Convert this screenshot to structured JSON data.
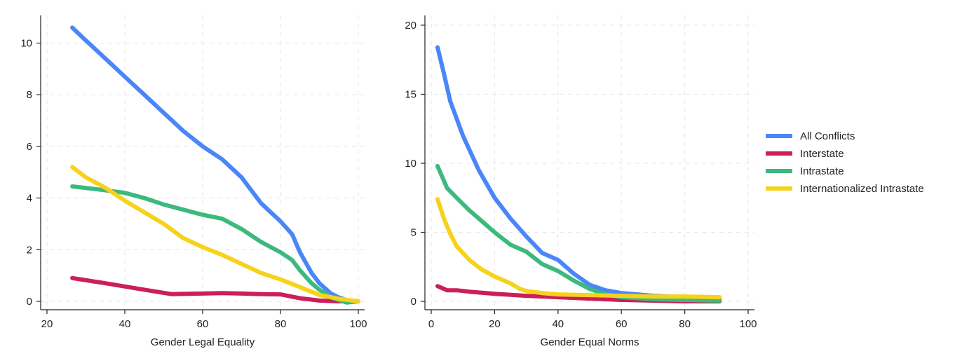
{
  "chart_data": [
    {
      "type": "line",
      "xlabel": "Gender Legal Equality",
      "ylabel": "",
      "xlim": [
        20,
        100
      ],
      "ylim": [
        0,
        10.8
      ],
      "xticks": [
        20,
        40,
        60,
        80,
        100
      ],
      "yticks": [
        0,
        2,
        4,
        6,
        8,
        10
      ],
      "grid": true,
      "series": [
        {
          "name": "All Conflicts",
          "color": "#4a86f7",
          "x": [
            26.5,
            30,
            35,
            40,
            45,
            50,
            55,
            60,
            65,
            70,
            75,
            80,
            83,
            85,
            88,
            90,
            93,
            95,
            97,
            100
          ],
          "y": [
            10.6,
            10.1,
            9.4,
            8.7,
            8.0,
            7.3,
            6.6,
            6.0,
            5.5,
            4.8,
            3.8,
            3.1,
            2.6,
            1.9,
            1.1,
            0.7,
            0.3,
            0.15,
            0.05,
            0.0
          ]
        },
        {
          "name": "Interstate",
          "color": "#cc1e5a",
          "x": [
            26.5,
            35,
            45,
            52,
            60,
            65,
            70,
            75,
            80,
            85,
            90,
            95,
            100
          ],
          "y": [
            0.9,
            0.7,
            0.45,
            0.28,
            0.3,
            0.32,
            0.3,
            0.28,
            0.27,
            0.12,
            0.03,
            0.0,
            0.0
          ]
        },
        {
          "name": "Intrastate",
          "color": "#3cba7e",
          "x": [
            26.5,
            35,
            40,
            45,
            50,
            55,
            60,
            65,
            70,
            75,
            80,
            83,
            85,
            88,
            90,
            93,
            95,
            97,
            100
          ],
          "y": [
            4.45,
            4.3,
            4.2,
            4.0,
            3.75,
            3.55,
            3.35,
            3.2,
            2.8,
            2.3,
            1.9,
            1.6,
            1.2,
            0.7,
            0.45,
            0.15,
            0.05,
            -0.05,
            0.0
          ]
        },
        {
          "name": "Internationalized Intrastate",
          "color": "#f7d21a",
          "x": [
            26.5,
            30,
            35,
            40,
            45,
            50,
            55,
            60,
            65,
            70,
            75,
            80,
            85,
            90,
            95,
            100
          ],
          "y": [
            5.2,
            4.8,
            4.4,
            3.9,
            3.45,
            3.0,
            2.45,
            2.1,
            1.8,
            1.45,
            1.1,
            0.85,
            0.55,
            0.25,
            0.1,
            0.0
          ]
        }
      ]
    },
    {
      "type": "line",
      "xlabel": "Gender Equal Norms",
      "ylabel": "",
      "xlim": [
        0,
        100
      ],
      "ylim": [
        0,
        20.2
      ],
      "xticks": [
        0,
        20,
        40,
        60,
        80,
        100
      ],
      "yticks": [
        0,
        5,
        10,
        15,
        20
      ],
      "grid": true,
      "series": [
        {
          "name": "All Conflicts",
          "color": "#4a86f7",
          "x": [
            2,
            4,
            6,
            10,
            15,
            20,
            25,
            30,
            35,
            40,
            45,
            50,
            55,
            60,
            70,
            80,
            91
          ],
          "y": [
            18.4,
            16.5,
            14.5,
            12.0,
            9.5,
            7.5,
            6.0,
            4.7,
            3.5,
            3.0,
            2.0,
            1.2,
            0.8,
            0.6,
            0.4,
            0.3,
            0.2
          ]
        },
        {
          "name": "Interstate",
          "color": "#cc1e5a",
          "x": [
            2,
            5,
            8,
            12,
            20,
            30,
            40,
            50,
            60,
            70,
            80,
            91
          ],
          "y": [
            1.1,
            0.8,
            0.8,
            0.7,
            0.55,
            0.4,
            0.3,
            0.2,
            0.1,
            0.05,
            0.0,
            0.0
          ]
        },
        {
          "name": "Intrastate",
          "color": "#3cba7e",
          "x": [
            2,
            5,
            8,
            12,
            16,
            20,
            25,
            30,
            35,
            40,
            45,
            50,
            55,
            60,
            70,
            80,
            91
          ],
          "y": [
            9.8,
            8.2,
            7.5,
            6.6,
            5.8,
            5.0,
            4.1,
            3.6,
            2.7,
            2.2,
            1.5,
            0.9,
            0.5,
            0.3,
            0.15,
            0.1,
            0.05
          ]
        },
        {
          "name": "Internationalized Intrastate",
          "color": "#f7d21a",
          "x": [
            2,
            4,
            6,
            8,
            12,
            16,
            20,
            25,
            28,
            30,
            35,
            40,
            50,
            60,
            70,
            80,
            91
          ],
          "y": [
            7.4,
            6.0,
            4.9,
            4.0,
            3.0,
            2.3,
            1.8,
            1.3,
            0.9,
            0.75,
            0.6,
            0.5,
            0.45,
            0.4,
            0.35,
            0.35,
            0.3
          ]
        }
      ]
    }
  ],
  "legend": {
    "position": "right",
    "items": [
      {
        "label": "All Conflicts",
        "color": "#4a86f7"
      },
      {
        "label": "Interstate",
        "color": "#cc1e5a"
      },
      {
        "label": "Intrastate",
        "color": "#3cba7e"
      },
      {
        "label": "Internationalized Intrastate",
        "color": "#f7d21a"
      }
    ]
  }
}
